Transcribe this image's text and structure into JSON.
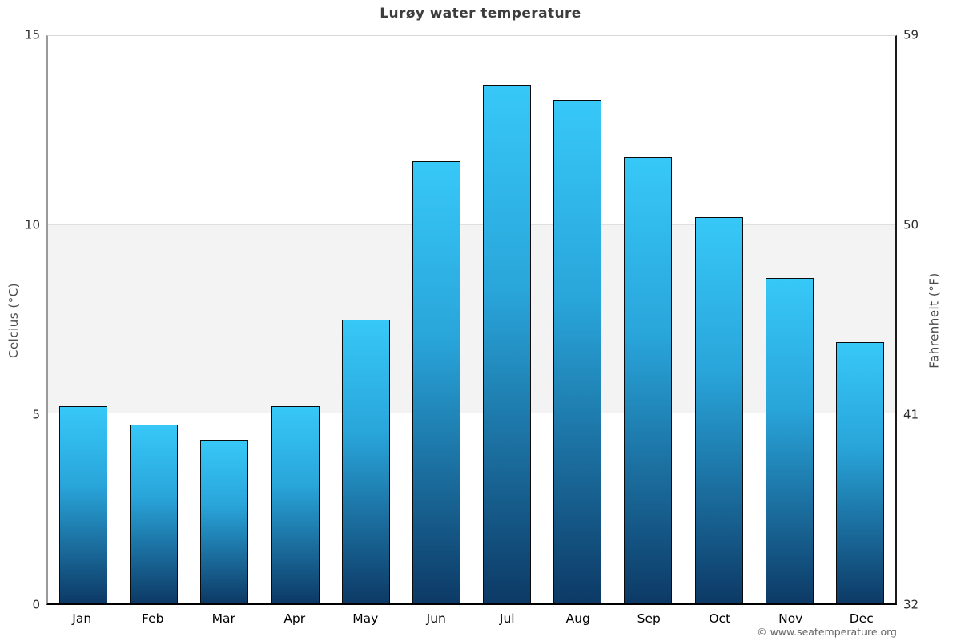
{
  "watermark": "© www.seatemperature.org",
  "chart_data": {
    "type": "bar",
    "title": "Lurøy water temperature",
    "categories": [
      "Jan",
      "Feb",
      "Mar",
      "Apr",
      "May",
      "Jun",
      "Jul",
      "Aug",
      "Sep",
      "Oct",
      "Nov",
      "Dec"
    ],
    "values": [
      5.2,
      4.7,
      4.3,
      5.2,
      7.5,
      11.7,
      13.7,
      13.3,
      11.8,
      10.2,
      8.6,
      6.9
    ],
    "xlabel": "",
    "ylabel_left": "Celcius (°C)",
    "ylabel_right": "Fahrenheit (°F)",
    "ylim": [
      0,
      15
    ],
    "yticks_left": [
      0,
      5,
      10,
      15
    ],
    "yticks_right": [
      32,
      41,
      50,
      59
    ],
    "grid": "horizontal gridlines at 5-degree steps, shaded band between 5 and 10",
    "band": {
      "from": 5,
      "to": 10
    },
    "legend": "none",
    "colors": {
      "bar_gradient_top": "#37c8f8",
      "bar_gradient_mid": "#29a5da",
      "bar_gradient_bottom": "#0d3a66",
      "bar_border": "#0a0a0a",
      "band_fill": "#f3f3f3",
      "gridline": "#e0e0e0",
      "title_text": "#3d3d3d",
      "tick_text": "#2b2b2b",
      "axis_label_text": "#4a4a4a",
      "watermark_text": "#666666"
    }
  }
}
